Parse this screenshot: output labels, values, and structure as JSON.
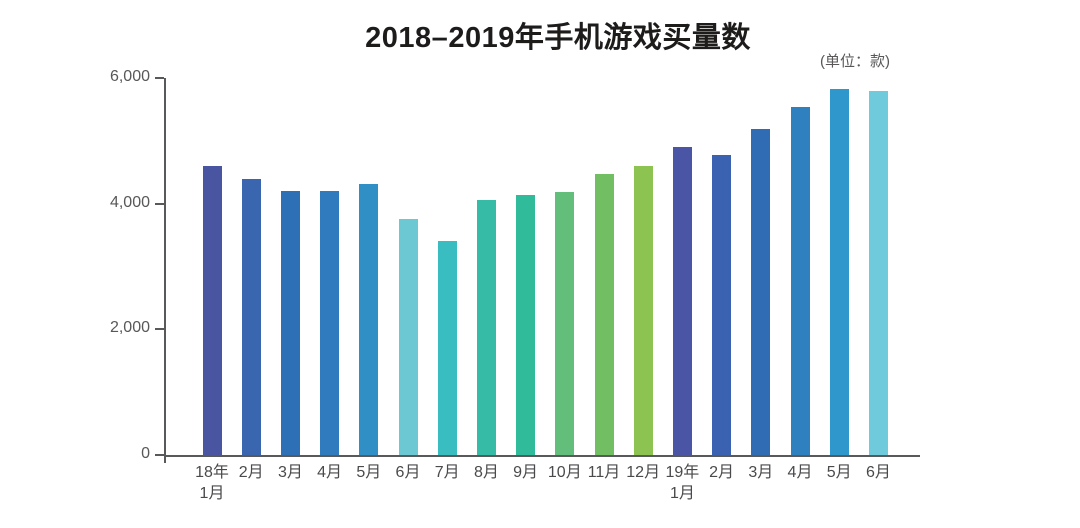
{
  "header": {
    "title": "2018–2019年手机游戏买量数",
    "unit_label": "(单位：款)"
  },
  "chart_data": {
    "type": "bar",
    "title": "2018–2019年手机游戏买量数",
    "unit": "(单位：款)",
    "categories": [
      "18年\n1月",
      "2月",
      "3月",
      "4月",
      "5月",
      "6月",
      "7月",
      "8月",
      "9月",
      "10月",
      "11月",
      "12月",
      "19年\n1月",
      "2月",
      "3月",
      "4月",
      "5月",
      "6月"
    ],
    "values": [
      4600,
      4400,
      4200,
      4200,
      4320,
      3750,
      3400,
      4060,
      4130,
      4180,
      4480,
      4600,
      4900,
      4770,
      5190,
      5540,
      5820,
      5800
    ],
    "bar_colors": [
      "#4a55a2",
      "#3a66b0",
      "#2e70b5",
      "#2f7bbe",
      "#3090c6",
      "#6cc9d4",
      "#3abdc1",
      "#35bba6",
      "#30bc9a",
      "#63be7b",
      "#72be62",
      "#8cc351",
      "#4a55a5",
      "#3a62b0",
      "#2f6cb4",
      "#2f80be",
      "#2f97cc",
      "#6fcbdc"
    ],
    "xlabel": "",
    "ylabel": "",
    "ylim": [
      0,
      6000
    ],
    "yticks": [
      0,
      2000,
      4000,
      6000
    ],
    "ytick_labels": [
      "0",
      "2,000",
      "4,000",
      "6,000"
    ],
    "grid": false,
    "legend": "none",
    "axis_color": "#58595b",
    "label_color": "#595757",
    "title_color": "#1e1b1b"
  }
}
